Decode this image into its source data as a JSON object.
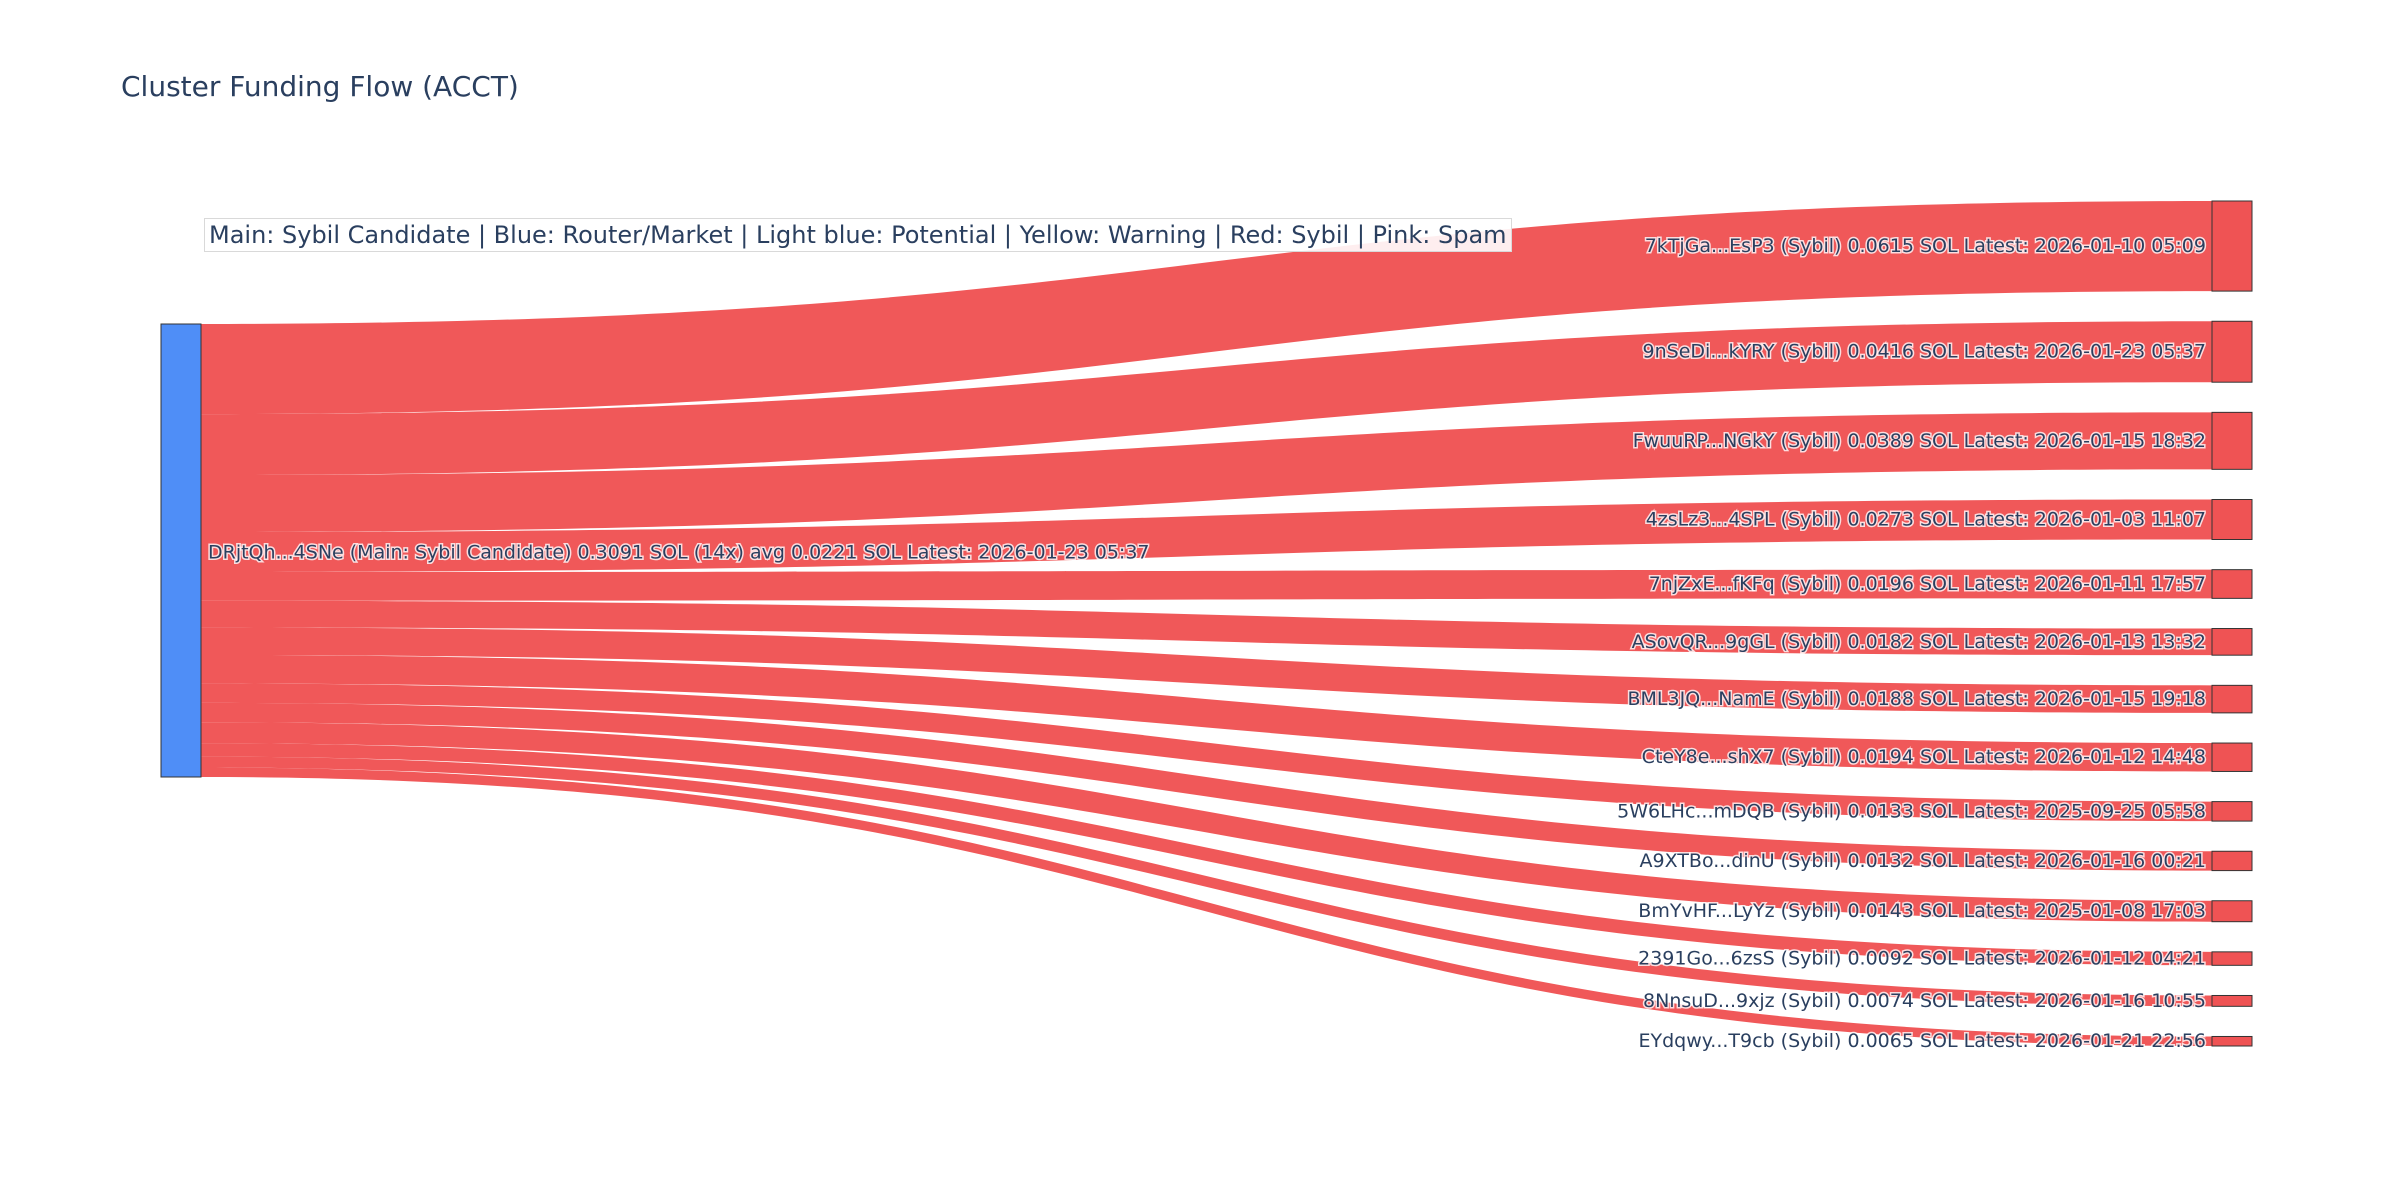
{
  "chart_data": {
    "type": "sankey",
    "title": "Cluster Funding Flow (ACCT)",
    "annotation": "Main: Sybil Candidate  |  Blue: Router/Market | Light blue: Potential | Yellow: Warning | Red: Sybil | Pink: Spam",
    "colors": {
      "source_node": "#4f8ef7",
      "target_node": "#ef5354",
      "link": "#ef5354",
      "node_border": "#333333",
      "label_text": "#2a3f5f"
    },
    "source": {
      "label": "DRjtQh...4SNe (Main: Sybil Candidate) 0.3091 SOL (14x) avg 0.0221 SOL Latest: 2026-01-23 05:37",
      "total_sol": 0.3091
    },
    "targets": [
      {
        "label": "7kTjGa...EsP3 (Sybil) 0.0615 SOL Latest: 2026-01-10 05:09",
        "value": 0.0615
      },
      {
        "label": "9nSeDi...kYRY (Sybil) 0.0416 SOL Latest: 2026-01-23 05:37",
        "value": 0.0416
      },
      {
        "label": "FwuuRP...NGkY (Sybil) 0.0389 SOL Latest: 2026-01-15 18:32",
        "value": 0.0389
      },
      {
        "label": "4zsLz3...4SPL (Sybil) 0.0273 SOL Latest: 2026-01-03 11:07",
        "value": 0.0273
      },
      {
        "label": "7njZxE...fKFq (Sybil) 0.0196 SOL Latest: 2026-01-11 17:57",
        "value": 0.0196
      },
      {
        "label": "ASovQR...9gGL (Sybil) 0.0182 SOL Latest: 2026-01-13 13:32",
        "value": 0.0182
      },
      {
        "label": "BML3JQ...NamE (Sybil) 0.0188 SOL Latest: 2026-01-15 19:18",
        "value": 0.0188
      },
      {
        "label": "CteY8e...shX7 (Sybil) 0.0194 SOL Latest: 2026-01-12 14:48",
        "value": 0.0194
      },
      {
        "label": "5W6LHc...mDQB (Sybil) 0.0133 SOL Latest: 2025-09-25 05:58",
        "value": 0.0133
      },
      {
        "label": "A9XTBo...dinU (Sybil) 0.0132 SOL Latest: 2026-01-16 00:21",
        "value": 0.0132
      },
      {
        "label": "BmYvHF...LyYz (Sybil) 0.0143 SOL Latest: 2025-01-08 17:03",
        "value": 0.0143
      },
      {
        "label": "2391Go...6zsS (Sybil) 0.0092 SOL Latest: 2026-01-12 04:21",
        "value": 0.0092
      },
      {
        "label": "8NnsuD...9xjz (Sybil) 0.0074 SOL Latest: 2026-01-16 10:55",
        "value": 0.0074
      },
      {
        "label": "EYdqwy...T9cb (Sybil) 0.0065 SOL Latest: 2026-01-21 22:56",
        "value": 0.0065
      }
    ]
  }
}
